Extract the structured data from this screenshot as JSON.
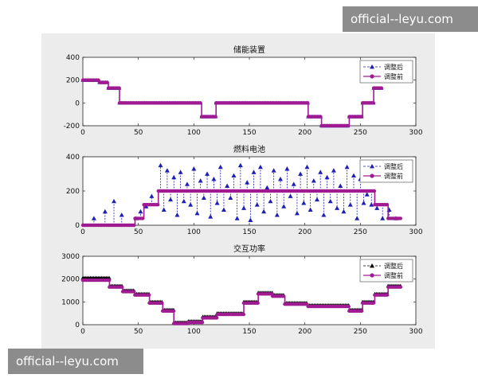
{
  "watermarks": {
    "top": "official--leyu.com",
    "bottom": "official--leyu.com"
  },
  "colors": {
    "after": "#1f1fb4",
    "before": "#a01a92",
    "legend_after_marker_panel3": "#000000",
    "axes_bg": "#ffffff",
    "figure_bg": "#ececec"
  },
  "chart_data": [
    {
      "type": "line",
      "title": "储能装置",
      "xlim": [
        0,
        300
      ],
      "ylim": [
        -200,
        400
      ],
      "xticks": [
        0,
        50,
        100,
        150,
        200,
        250,
        300
      ],
      "yticks": [
        -200,
        0,
        200,
        400
      ],
      "legend": {
        "placement": "top-right",
        "entries": [
          "调整后",
          "调整前"
        ]
      },
      "series": [
        {
          "name": "调整前",
          "marker": "circle",
          "style": "solid",
          "color": "#a01a92",
          "segments": [
            {
              "x": [
                0,
                15
              ],
              "y": 200
            },
            {
              "x": [
                15,
                23
              ],
              "y": 180
            },
            {
              "x": [
                23,
                33
              ],
              "y": 130
            },
            {
              "x": [
                33,
                107
              ],
              "y": 0
            },
            {
              "x": [
                107,
                120
              ],
              "y": -120
            },
            {
              "x": [
                120,
                203
              ],
              "y": 0
            },
            {
              "x": [
                203,
                215
              ],
              "y": -120
            },
            {
              "x": [
                215,
                240
              ],
              "y": -200
            },
            {
              "x": [
                240,
                252
              ],
              "y": -120
            },
            {
              "x": [
                252,
                262
              ],
              "y": 0
            },
            {
              "x": [
                262,
                270
              ],
              "y": 130
            }
          ]
        },
        {
          "name": "调整后",
          "marker": "triangle",
          "style": "dashed",
          "color": "#1f1fb4",
          "segments": [
            {
              "x": [
                0,
                15
              ],
              "y": 200
            },
            {
              "x": [
                15,
                23
              ],
              "y": 180
            },
            {
              "x": [
                23,
                33
              ],
              "y": 130
            },
            {
              "x": [
                33,
                107
              ],
              "y": 0
            },
            {
              "x": [
                107,
                120
              ],
              "y": -120
            },
            {
              "x": [
                120,
                203
              ],
              "y": 0
            },
            {
              "x": [
                203,
                215
              ],
              "y": -120
            },
            {
              "x": [
                215,
                240
              ],
              "y": -200
            },
            {
              "x": [
                240,
                252
              ],
              "y": -120
            },
            {
              "x": [
                252,
                262
              ],
              "y": 0
            },
            {
              "x": [
                262,
                270
              ],
              "y": 130
            }
          ]
        }
      ]
    },
    {
      "type": "line",
      "title": "燃料电池",
      "xlim": [
        0,
        300
      ],
      "ylim": [
        0,
        400
      ],
      "xticks": [
        0,
        50,
        100,
        150,
        200,
        250,
        300
      ],
      "yticks": [
        0,
        200,
        400
      ],
      "legend": {
        "placement": "top-right",
        "entries": [
          "调整后",
          "调整前"
        ]
      },
      "series": [
        {
          "name": "调整前",
          "marker": "circle",
          "style": "solid",
          "color": "#a01a92",
          "segments": [
            {
              "x": [
                0,
                47
              ],
              "y": 0
            },
            {
              "x": [
                47,
                55
              ],
              "y": 40
            },
            {
              "x": [
                55,
                68
              ],
              "y": 120
            },
            {
              "x": [
                68,
                263
              ],
              "y": 200
            },
            {
              "x": [
                263,
                275
              ],
              "y": 120
            },
            {
              "x": [
                275,
                287
              ],
              "y": 40
            }
          ]
        },
        {
          "name": "调整后",
          "marker": "triangle",
          "style": "dashed",
          "color": "#1f1fb4",
          "spikes": [
            [
              10,
              40
            ],
            [
              20,
              80
            ],
            [
              28,
              140
            ],
            [
              35,
              60
            ],
            [
              48,
              40
            ],
            [
              52,
              80
            ],
            [
              57,
              110
            ],
            [
              62,
              170
            ],
            [
              70,
              350
            ],
            [
              73,
              90
            ],
            [
              76,
              320
            ],
            [
              79,
              150
            ],
            [
              82,
              280
            ],
            [
              85,
              60
            ],
            [
              88,
              310
            ],
            [
              91,
              140
            ],
            [
              94,
              240
            ],
            [
              97,
              120
            ],
            [
              100,
              330
            ],
            [
              103,
              70
            ],
            [
              106,
              260
            ],
            [
              109,
              160
            ],
            [
              112,
              300
            ],
            [
              115,
              50
            ],
            [
              118,
              270
            ],
            [
              121,
              130
            ],
            [
              124,
              340
            ],
            [
              127,
              90
            ],
            [
              130,
              230
            ],
            [
              133,
              160
            ],
            [
              136,
              290
            ],
            [
              139,
              40
            ],
            [
              142,
              350
            ],
            [
              145,
              100
            ],
            [
              148,
              250
            ],
            [
              151,
              30
            ],
            [
              154,
              310
            ],
            [
              157,
              120
            ],
            [
              160,
              340
            ],
            [
              163,
              80
            ],
            [
              166,
              220
            ],
            [
              169,
              140
            ],
            [
              172,
              320
            ],
            [
              175,
              60
            ],
            [
              178,
              270
            ],
            [
              181,
              110
            ],
            [
              184,
              330
            ],
            [
              187,
              170
            ],
            [
              190,
              240
            ],
            [
              193,
              70
            ],
            [
              196,
              300
            ],
            [
              199,
              130
            ],
            [
              202,
              340
            ],
            [
              205,
              90
            ],
            [
              208,
              260
            ],
            [
              211,
              150
            ],
            [
              214,
              310
            ],
            [
              217,
              60
            ],
            [
              220,
              280
            ],
            [
              223,
              140
            ],
            [
              226,
              320
            ],
            [
              229,
              100
            ],
            [
              232,
              230
            ],
            [
              235,
              80
            ],
            [
              238,
              340
            ],
            [
              241,
              120
            ],
            [
              244,
              290
            ],
            [
              247,
              40
            ],
            [
              250,
              270
            ],
            [
              253,
              130
            ],
            [
              256,
              180
            ],
            [
              260,
              120
            ],
            [
              265,
              100
            ],
            [
              270,
              40
            ],
            [
              276,
              90
            ],
            [
              282,
              40
            ]
          ]
        }
      ]
    },
    {
      "type": "line",
      "title": "交互功率",
      "xlim": [
        0,
        300
      ],
      "ylim": [
        0,
        3000
      ],
      "xticks": [
        0,
        50,
        100,
        150,
        200,
        250,
        300
      ],
      "yticks": [
        0,
        1000,
        2000,
        3000
      ],
      "legend": {
        "placement": "top-right",
        "entries": [
          "调整后",
          "调整前"
        ]
      },
      "series": [
        {
          "name": "调整前",
          "marker": "circle",
          "style": "solid",
          "color": "#a01a92",
          "segments": [
            {
              "x": [
                0,
                24
              ],
              "y": 1950
            },
            {
              "x": [
                24,
                36
              ],
              "y": 1650
            },
            {
              "x": [
                36,
                47
              ],
              "y": 1450
            },
            {
              "x": [
                47,
                60
              ],
              "y": 1300
            },
            {
              "x": [
                60,
                72
              ],
              "y": 950
            },
            {
              "x": [
                72,
                82
              ],
              "y": 600
            },
            {
              "x": [
                82,
                95
              ],
              "y": 50
            },
            {
              "x": [
                95,
                108
              ],
              "y": 100
            },
            {
              "x": [
                108,
                121
              ],
              "y": 300
            },
            {
              "x": [
                121,
                145
              ],
              "y": 450
            },
            {
              "x": [
                145,
                158
              ],
              "y": 950
            },
            {
              "x": [
                158,
                171
              ],
              "y": 1350
            },
            {
              "x": [
                171,
                182
              ],
              "y": 1250
            },
            {
              "x": [
                182,
                203
              ],
              "y": 900
            },
            {
              "x": [
                203,
                240
              ],
              "y": 800
            },
            {
              "x": [
                240,
                252
              ],
              "y": 600
            },
            {
              "x": [
                252,
                263
              ],
              "y": 950
            },
            {
              "x": [
                263,
                275
              ],
              "y": 1300
            },
            {
              "x": [
                275,
                287
              ],
              "y": 1650
            }
          ]
        },
        {
          "name": "调整后",
          "marker": "triangle",
          "style": "dashed",
          "color": "#000000",
          "segments": [
            {
              "x": [
                0,
                24
              ],
              "y": 2050
            },
            {
              "x": [
                24,
                36
              ],
              "y": 1700
            },
            {
              "x": [
                36,
                47
              ],
              "y": 1500
            },
            {
              "x": [
                47,
                60
              ],
              "y": 1350
            },
            {
              "x": [
                60,
                72
              ],
              "y": 1000
            },
            {
              "x": [
                72,
                82
              ],
              "y": 650
            },
            {
              "x": [
                82,
                95
              ],
              "y": 100
            },
            {
              "x": [
                95,
                108
              ],
              "y": 150
            },
            {
              "x": [
                108,
                121
              ],
              "y": 350
            },
            {
              "x": [
                121,
                145
              ],
              "y": 500
            },
            {
              "x": [
                145,
                158
              ],
              "y": 1000
            },
            {
              "x": [
                158,
                171
              ],
              "y": 1400
            },
            {
              "x": [
                171,
                182
              ],
              "y": 1300
            },
            {
              "x": [
                182,
                203
              ],
              "y": 950
            },
            {
              "x": [
                203,
                240
              ],
              "y": 850
            },
            {
              "x": [
                240,
                252
              ],
              "y": 650
            },
            {
              "x": [
                252,
                263
              ],
              "y": 1000
            },
            {
              "x": [
                263,
                275
              ],
              "y": 1350
            },
            {
              "x": [
                275,
                287
              ],
              "y": 1700
            }
          ]
        }
      ]
    }
  ]
}
